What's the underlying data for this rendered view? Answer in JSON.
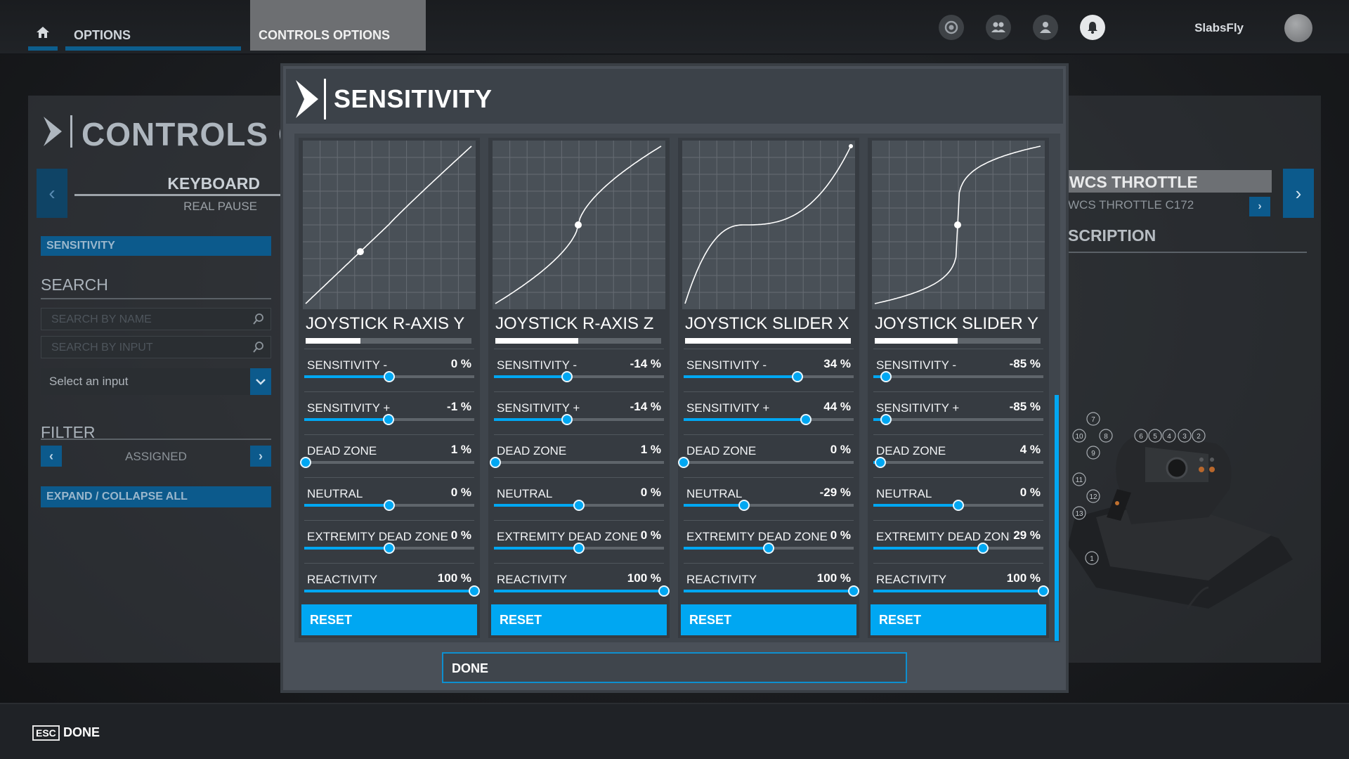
{
  "topbar": {
    "tabs": [
      "OPTIONS",
      "CONTROLS OPTIONS"
    ],
    "icons": [
      "home-icon",
      "activity-icon",
      "friends-icon",
      "profile-icon",
      "notifications-icon"
    ],
    "username": "SlabsFly"
  },
  "left_panel": {
    "title": "CONTROLS O",
    "device": "KEYBOARD",
    "device_sub": "REAL PAUSE",
    "sensitivity_label": "SENSITIVITY",
    "search_label": "SEARCH",
    "search_name_placeholder": "SEARCH BY NAME",
    "search_input_placeholder": "SEARCH BY INPUT",
    "select_input": "Select an input",
    "filter_label": "FILTER",
    "filter_value": "ASSIGNED",
    "expand_label": "EXPAND / COLLAPSE ALL"
  },
  "right_panel": {
    "device": "WCS THROTTLE",
    "device_sub": "WCS THROTTLE C172",
    "description_label": "SCRIPTION",
    "callout_numbers": [
      "7",
      "10",
      "8",
      "9",
      "6",
      "5",
      "4",
      "3",
      "2",
      "11",
      "12",
      "13",
      "1"
    ]
  },
  "modal": {
    "title": "SENSITIVITY",
    "done_label": "DONE",
    "reset_label": "RESET",
    "axes": [
      {
        "name": "JOYSTICK R-AXIS Y",
        "input_level": 0.33,
        "params": [
          {
            "label": "SENSITIVITY -",
            "value": "0 %",
            "level": 0.5
          },
          {
            "label": "SENSITIVITY +",
            "value": "-1 %",
            "level": 0.495
          },
          {
            "label": "DEAD ZONE",
            "value": "1 %",
            "level": 0.01
          },
          {
            "label": "NEUTRAL",
            "value": "0 %",
            "level": 0.5
          },
          {
            "label": "EXTREMITY DEAD ZONE",
            "value": "0 %",
            "level": 0.5
          },
          {
            "label": "REACTIVITY",
            "value": "100 %",
            "level": 1.0
          }
        ]
      },
      {
        "name": "JOYSTICK R-AXIS Z",
        "input_level": 0.5,
        "params": [
          {
            "label": "SENSITIVITY -",
            "value": "-14 %",
            "level": 0.43
          },
          {
            "label": "SENSITIVITY +",
            "value": "-14 %",
            "level": 0.43
          },
          {
            "label": "DEAD ZONE",
            "value": "1 %",
            "level": 0.01
          },
          {
            "label": "NEUTRAL",
            "value": "0 %",
            "level": 0.5
          },
          {
            "label": "EXTREMITY DEAD ZONE",
            "value": "0 %",
            "level": 0.5
          },
          {
            "label": "REACTIVITY",
            "value": "100 %",
            "level": 1.0
          }
        ]
      },
      {
        "name": "JOYSTICK SLIDER X",
        "input_level": 1.0,
        "params": [
          {
            "label": "SENSITIVITY -",
            "value": "34 %",
            "level": 0.67
          },
          {
            "label": "SENSITIVITY +",
            "value": "44 %",
            "level": 0.72
          },
          {
            "label": "DEAD ZONE",
            "value": "0 %",
            "level": 0.0
          },
          {
            "label": "NEUTRAL",
            "value": "-29 %",
            "level": 0.355
          },
          {
            "label": "EXTREMITY DEAD ZONE",
            "value": "0 %",
            "level": 0.5
          },
          {
            "label": "REACTIVITY",
            "value": "100 %",
            "level": 1.0
          }
        ]
      },
      {
        "name": "JOYSTICK SLIDER Y",
        "input_level": 0.5,
        "params": [
          {
            "label": "SENSITIVITY -",
            "value": "-85 %",
            "level": 0.075
          },
          {
            "label": "SENSITIVITY +",
            "value": "-85 %",
            "level": 0.075
          },
          {
            "label": "DEAD ZONE",
            "value": "4 %",
            "level": 0.04
          },
          {
            "label": "NEUTRAL",
            "value": "0 %",
            "level": 0.5
          },
          {
            "label": "EXTREMITY DEAD ZONE",
            "value": "29 %",
            "level": 0.645
          },
          {
            "label": "REACTIVITY",
            "value": "100 %",
            "level": 1.0
          }
        ]
      }
    ]
  },
  "bottombar": {
    "key": "ESC",
    "label": "DONE"
  },
  "colors": {
    "accent": "#00a7f2",
    "dark_accent": "#0c5a8c",
    "panel": "#363b41",
    "modal": "#4a5058"
  }
}
